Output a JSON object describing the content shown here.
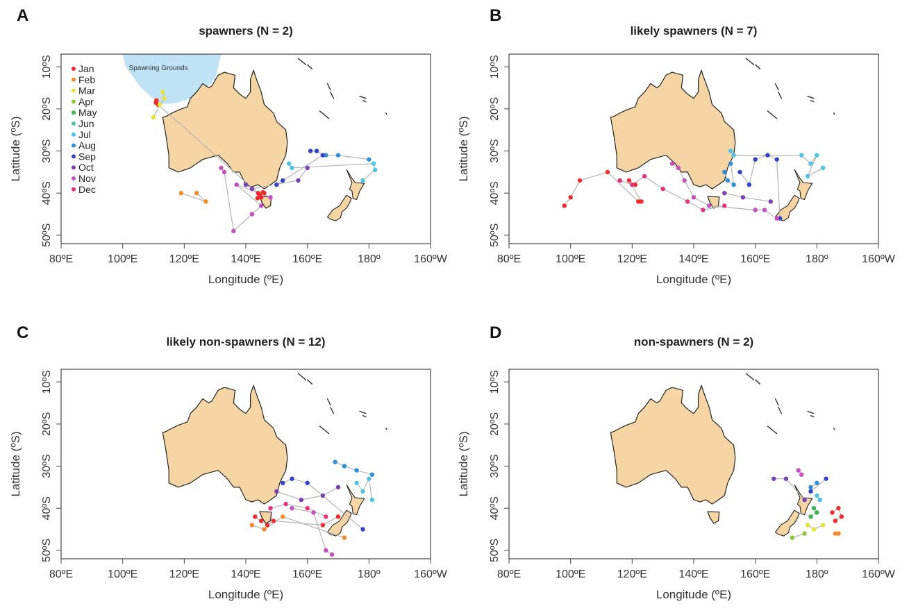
{
  "panels": [
    {
      "letter": "A",
      "title": "spawners (N = 2)"
    },
    {
      "letter": "B",
      "title": "likely spawners (N = 7)"
    },
    {
      "letter": "C",
      "title": "likely non-spawners (N = 12)"
    },
    {
      "letter": "D",
      "title": "non-spawners (N = 2)"
    }
  ],
  "axes": {
    "xlabel": "Longitude (ºE)",
    "ylabel": "Latitude (ºS)",
    "x_ticks": [
      "80ºE",
      "100ºE",
      "120ºE",
      "140ºE",
      "160ºE",
      "180º",
      "160ºW"
    ],
    "y_ticks": [
      "10ºS",
      "20ºS",
      "30ºS",
      "40ºS",
      "50ºS"
    ],
    "xlim": [
      80,
      200
    ],
    "ylim": [
      -52,
      -7
    ]
  },
  "legend": {
    "months": [
      "Jan",
      "Feb",
      "Mar",
      "Apr",
      "May",
      "Jun",
      "Jul",
      "Aug",
      "Sep",
      "Oct",
      "Nov",
      "Dec"
    ],
    "colors": [
      "#ee2a2a",
      "#f58a2a",
      "#e8e23a",
      "#8cc63f",
      "#3bb54a",
      "#4cc9a0",
      "#4dc3e8",
      "#2f8fd6",
      "#3342c4",
      "#7b3fb8",
      "#c94ec2",
      "#e8307a"
    ]
  },
  "annotation": {
    "label": "Spawning Grounds",
    "fill": "#bfe2f5"
  },
  "land_color": "#f4d5a3",
  "track_color": "#b3b3b3",
  "chart_data": [
    {
      "type": "scatter",
      "title": "spawners (N = 2)",
      "xlabel": "Longitude (ºE)",
      "ylabel": "Latitude (ºS)",
      "xlim": [
        80,
        200
      ],
      "ylim": [
        -52,
        -7
      ],
      "series": [
        {
          "name": "Jan",
          "points": [
            [
              111,
              -18
            ],
            [
              111.5,
              -19
            ],
            [
              110.8,
              -18.5
            ],
            [
              144,
              -40
            ],
            [
              145,
              -41
            ],
            [
              144.5,
              -40.5
            ],
            [
              146,
              -40
            ],
            [
              145.5,
              -39.8
            ],
            [
              143.8,
              -41.2
            ]
          ]
        },
        {
          "name": "Feb",
          "points": [
            [
              124,
              -40
            ],
            [
              127,
              -42
            ],
            [
              119,
              -40
            ]
          ]
        },
        {
          "name": "Mar",
          "points": [
            [
              113,
              -16
            ],
            [
              113.5,
              -17.5
            ],
            [
              112,
              -19
            ],
            [
              110,
              -22
            ]
          ]
        },
        {
          "name": "Jul",
          "points": [
            [
              154,
              -33
            ],
            [
              155,
              -34
            ],
            [
              181.5,
              -33
            ],
            [
              182,
              -34.5
            ],
            [
              178,
              -37
            ]
          ]
        },
        {
          "name": "Aug",
          "points": [
            [
              166,
              -31
            ],
            [
              170,
              -31
            ],
            [
              180,
              -32
            ]
          ]
        },
        {
          "name": "Sep",
          "points": [
            [
              161,
              -30
            ],
            [
              163,
              -30
            ],
            [
              165,
              -31
            ],
            [
              150,
              -38
            ],
            [
              152,
              -37
            ]
          ]
        },
        {
          "name": "Oct",
          "points": [
            [
              140,
              -38
            ],
            [
              142,
              -39
            ],
            [
              157,
              -37
            ],
            [
              160,
              -34
            ]
          ]
        },
        {
          "name": "Nov",
          "points": [
            [
              132,
              -34
            ],
            [
              133,
              -35
            ],
            [
              136,
              -49
            ],
            [
              142,
              -45
            ],
            [
              145,
              -43
            ],
            [
              137,
              -38
            ],
            [
              148,
              -41
            ]
          ]
        }
      ]
    },
    {
      "type": "scatter",
      "title": "likely spawners (N = 7)",
      "xlabel": "Longitude (ºE)",
      "ylabel": "Latitude (ºS)",
      "xlim": [
        80,
        200
      ],
      "ylim": [
        -52,
        -7
      ],
      "series": [
        {
          "name": "Jan",
          "points": [
            [
              98,
              -43
            ],
            [
              100,
              -41
            ],
            [
              103,
              -37
            ],
            [
              112,
              -35
            ],
            [
              122,
              -42
            ],
            [
              123,
              -42
            ],
            [
              119,
              -37
            ],
            [
              121,
              -38
            ]
          ]
        },
        {
          "name": "Jul",
          "points": [
            [
              152,
              -30
            ],
            [
              153,
              -31
            ],
            [
              175,
              -31
            ],
            [
              178,
              -33
            ],
            [
              180,
              -31
            ],
            [
              177,
              -36
            ],
            [
              182,
              -34
            ]
          ]
        },
        {
          "name": "Aug",
          "points": [
            [
              150,
              -35
            ],
            [
              151,
              -37
            ],
            [
              153,
              -38
            ],
            [
              152,
              -33
            ]
          ]
        },
        {
          "name": "Sep",
          "points": [
            [
              155,
              -35
            ],
            [
              158,
              -38
            ],
            [
              160,
              -32
            ],
            [
              164,
              -31
            ],
            [
              167,
              -32
            ],
            [
              168,
              -46
            ]
          ]
        },
        {
          "name": "Oct",
          "points": [
            [
              150,
              -40
            ],
            [
              156,
              -41
            ],
            [
              165,
              -42
            ]
          ]
        },
        {
          "name": "Nov",
          "points": [
            [
              133,
              -33
            ],
            [
              135,
              -34
            ],
            [
              137,
              -37
            ],
            [
              140,
              -41
            ],
            [
              145,
              -43
            ],
            [
              160,
              -44
            ],
            [
              163,
              -44
            ],
            [
              167,
              -46
            ]
          ]
        },
        {
          "name": "Dec",
          "points": [
            [
              116,
              -37
            ],
            [
              120,
              -38
            ],
            [
              124,
              -36
            ],
            [
              130,
              -39
            ],
            [
              138,
              -42
            ],
            [
              143,
              -44
            ],
            [
              150,
              -43
            ]
          ]
        }
      ]
    },
    {
      "type": "scatter",
      "title": "likely non-spawners (N = 12)",
      "xlabel": "Longitude (ºE)",
      "ylabel": "Latitude (ºS)",
      "xlim": [
        80,
        200
      ],
      "ylim": [
        -52,
        -7
      ],
      "series": [
        {
          "name": "Jan",
          "points": [
            [
              143,
              -42
            ],
            [
              145,
              -43
            ],
            [
              147,
              -44
            ],
            [
              149,
              -43
            ],
            [
              165,
              -44
            ],
            [
              170,
              -42
            ]
          ]
        },
        {
          "name": "Feb",
          "points": [
            [
              142,
              -44
            ],
            [
              146,
              -45
            ],
            [
              152,
              -42
            ],
            [
              172,
              -47
            ]
          ]
        },
        {
          "name": "Jul",
          "points": [
            [
              176,
              -34
            ],
            [
              178,
              -36
            ],
            [
              180,
              -33
            ],
            [
              181,
              -38
            ]
          ]
        },
        {
          "name": "Aug",
          "points": [
            [
              169,
              -29
            ],
            [
              172,
              -30
            ],
            [
              176,
              -31
            ],
            [
              181,
              -32
            ]
          ]
        },
        {
          "name": "Sep",
          "points": [
            [
              152,
              -34
            ],
            [
              155,
              -33
            ],
            [
              160,
              -34
            ],
            [
              178,
              -45
            ]
          ]
        },
        {
          "name": "Oct",
          "points": [
            [
              150,
              -36
            ],
            [
              158,
              -38
            ],
            [
              165,
              -37
            ],
            [
              170,
              -35
            ]
          ]
        },
        {
          "name": "Nov",
          "points": [
            [
              155,
              -40
            ],
            [
              162,
              -41
            ],
            [
              166,
              -50
            ],
            [
              168,
              -51
            ]
          ]
        },
        {
          "name": "Dec",
          "points": [
            [
              148,
              -40
            ],
            [
              153,
              -39
            ],
            [
              160,
              -40
            ],
            [
              166,
              -42
            ]
          ]
        }
      ]
    },
    {
      "type": "scatter",
      "title": "non-spawners (N = 2)",
      "xlabel": "Longitude (ºE)",
      "ylabel": "Latitude (ºS)",
      "xlim": [
        80,
        200
      ],
      "ylim": [
        -52,
        -7
      ],
      "series": [
        {
          "name": "Jan",
          "points": [
            [
              185,
              -41
            ],
            [
              187,
              -40
            ],
            [
              188,
              -42
            ],
            [
              186,
              -43
            ]
          ]
        },
        {
          "name": "Feb",
          "points": [
            [
              186,
              -46
            ],
            [
              187,
              -46
            ]
          ]
        },
        {
          "name": "Mar",
          "points": [
            [
              177,
              -44
            ],
            [
              179,
              -45
            ],
            [
              182,
              -44
            ]
          ]
        },
        {
          "name": "Apr",
          "points": [
            [
              172,
              -47
            ],
            [
              176,
              -46
            ]
          ]
        },
        {
          "name": "May",
          "points": [
            [
              178,
              -42
            ],
            [
              180,
              -41
            ],
            [
              179,
              -40
            ]
          ]
        },
        {
          "name": "Jul",
          "points": [
            [
              180,
              -37
            ],
            [
              181,
              -38
            ]
          ]
        },
        {
          "name": "Aug",
          "points": [
            [
              178,
              -35
            ],
            [
              180,
              -34
            ]
          ]
        },
        {
          "name": "Sep",
          "points": [
            [
              178,
              -36
            ],
            [
              183,
              -33
            ]
          ]
        },
        {
          "name": "Oct",
          "points": [
            [
              166,
              -33
            ],
            [
              170,
              -33
            ],
            [
              176,
              -38
            ]
          ]
        },
        {
          "name": "Nov",
          "points": [
            [
              174,
              -31
            ],
            [
              175,
              -32
            ]
          ]
        }
      ]
    }
  ]
}
